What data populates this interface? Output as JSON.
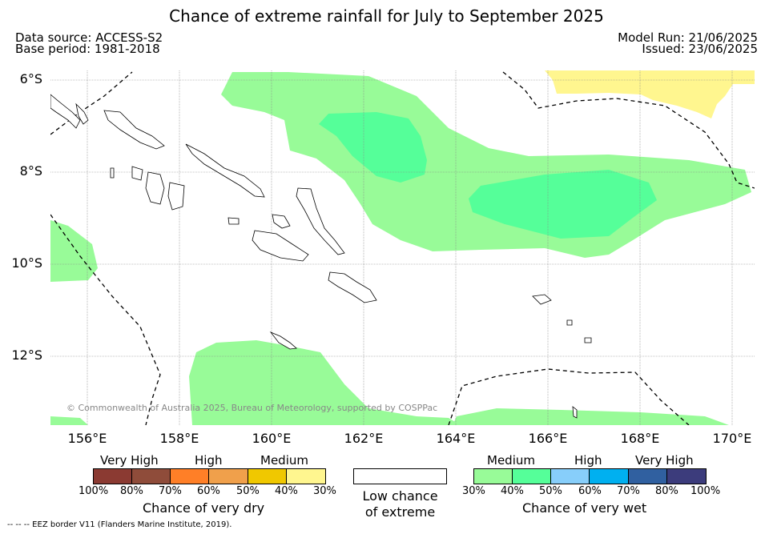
{
  "title": "Chance of extreme rainfall for July to September 2025",
  "data_source": "Data source: ACCESS-S2",
  "base_period": "Base period: 1981-2018",
  "model_run": "Model Run: 21/06/2025",
  "issued": "Issued: 23/06/2025",
  "lat_labels": [
    "6°S",
    "8°S",
    "10°S",
    "12°S"
  ],
  "lon_labels": [
    "156°E",
    "158°E",
    "160°E",
    "162°E",
    "164°E",
    "166°E",
    "168°E",
    "170°E"
  ],
  "copyright": "© Commonwealth of Australia 2025, Bureau of Meteorology, supported by COSPPac",
  "eez_note": "-- -- -- EEZ border V11 (Flanders Marine Institute, 2019).",
  "legend_dry": {
    "headers": [
      "Very High",
      "High",
      "Medium"
    ],
    "ticks": [
      "100%",
      "80%",
      "70%",
      "60%",
      "50%",
      "40%",
      "30%"
    ],
    "caption": "Chance of very dry",
    "colors": [
      "#8b3a32",
      "#8f4c3a",
      "#ff7f27",
      "#f0a04b",
      "#f0c800",
      "#fff68f"
    ]
  },
  "legend_low": {
    "line1": "Low chance",
    "line2": "of extreme",
    "color": "#ffffff"
  },
  "legend_wet": {
    "headers": [
      "Medium",
      "High",
      "Very High"
    ],
    "ticks": [
      "30%",
      "40%",
      "50%",
      "60%",
      "70%",
      "80%",
      "100%"
    ],
    "caption": "Chance of very wet",
    "colors": [
      "#98fb98",
      "#55ff99",
      "#87cefa",
      "#00b0f0",
      "#3060a0",
      "#3c3c7c"
    ]
  }
}
